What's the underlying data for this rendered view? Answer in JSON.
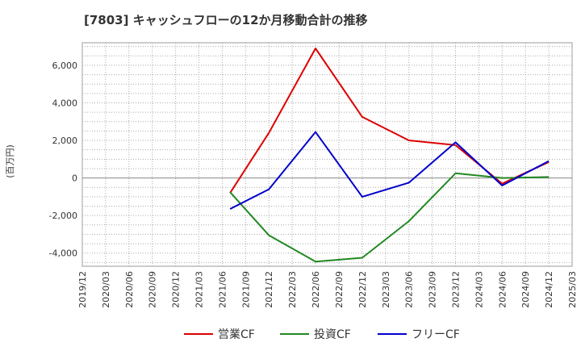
{
  "chart_data": {
    "type": "line",
    "title": "[7803]  キャッシュフローの12か月移動合計の推移",
    "ylabel": "(百万円)",
    "xlabel": "",
    "ylim": [
      -4700,
      7200
    ],
    "yticks": [
      6000,
      4000,
      2000,
      0,
      -2000,
      -4000
    ],
    "ytick_labels": [
      "6,000",
      "4,000",
      "2,000",
      "0",
      "-2,000",
      "-4,000"
    ],
    "xticks": [
      "2019/12",
      "2020/03",
      "2020/06",
      "2020/09",
      "2020/12",
      "2021/03",
      "2021/06",
      "2021/09",
      "2021/12",
      "2022/03",
      "2022/06",
      "2022/09",
      "2022/12",
      "2023/03",
      "2023/06",
      "2023/09",
      "2023/12",
      "2024/03",
      "2024/06",
      "2024/09",
      "2024/12",
      "2025/03"
    ],
    "grid": true,
    "legend_position": "bottom",
    "series": [
      {
        "name": "営業CF",
        "color": "#dd0000",
        "points": [
          [
            "2021/07",
            -800
          ],
          [
            "2021/12",
            2400
          ],
          [
            "2022/06",
            6900
          ],
          [
            "2022/12",
            3250
          ],
          [
            "2023/06",
            2000
          ],
          [
            "2023/12",
            1750
          ],
          [
            "2024/06",
            -300
          ],
          [
            "2024/12",
            850
          ]
        ]
      },
      {
        "name": "投資CF",
        "color": "#228822",
        "points": [
          [
            "2021/07",
            -750
          ],
          [
            "2021/12",
            -3050
          ],
          [
            "2022/06",
            -4450
          ],
          [
            "2022/12",
            -4250
          ],
          [
            "2023/06",
            -2300
          ],
          [
            "2023/12",
            250
          ],
          [
            "2024/06",
            0
          ],
          [
            "2024/12",
            50
          ]
        ]
      },
      {
        "name": "フリーCF",
        "color": "#0000cc",
        "points": [
          [
            "2021/07",
            -1650
          ],
          [
            "2021/12",
            -600
          ],
          [
            "2022/06",
            2450
          ],
          [
            "2022/12",
            -1000
          ],
          [
            "2023/06",
            -250
          ],
          [
            "2023/12",
            1900
          ],
          [
            "2024/06",
            -400
          ],
          [
            "2024/12",
            900
          ]
        ]
      }
    ]
  }
}
